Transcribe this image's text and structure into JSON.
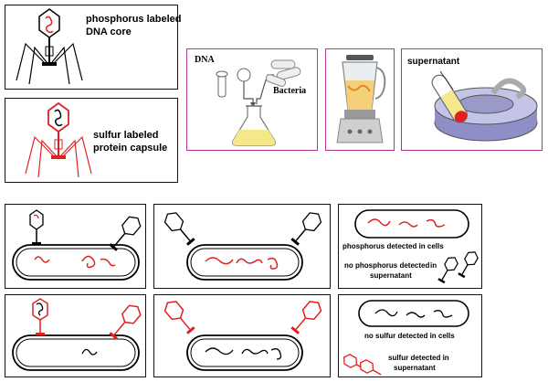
{
  "labels": {
    "phosphorus_labeled": "phosphorus labeled",
    "dna_core": "DNA core",
    "sulfur_labeled": "sulfur labeled",
    "protein_capsule": "protein capsule",
    "dna": "DNA",
    "bacteria": "Bacteria",
    "supernatant": "supernatant",
    "phosphorus_detected_cells": "phosphorus detected in cells",
    "no_phosphorus_detected_line1": "no phosphorus detected",
    "no_phosphorus_detected_line2": "in",
    "no_phosphorus_detected_line3": "supernatant",
    "no_sulfur_detected_cells": "no sulfur detected in cells",
    "sulfur_detected_line1": "sulfur detected in",
    "sulfur_detected_line2": "supernatant"
  },
  "colors": {
    "dna_label": "#e02020",
    "protein_label": "#e02020",
    "panel_border": "#111111",
    "process_border": "#b0338f",
    "liquid": "#f4e88a"
  }
}
